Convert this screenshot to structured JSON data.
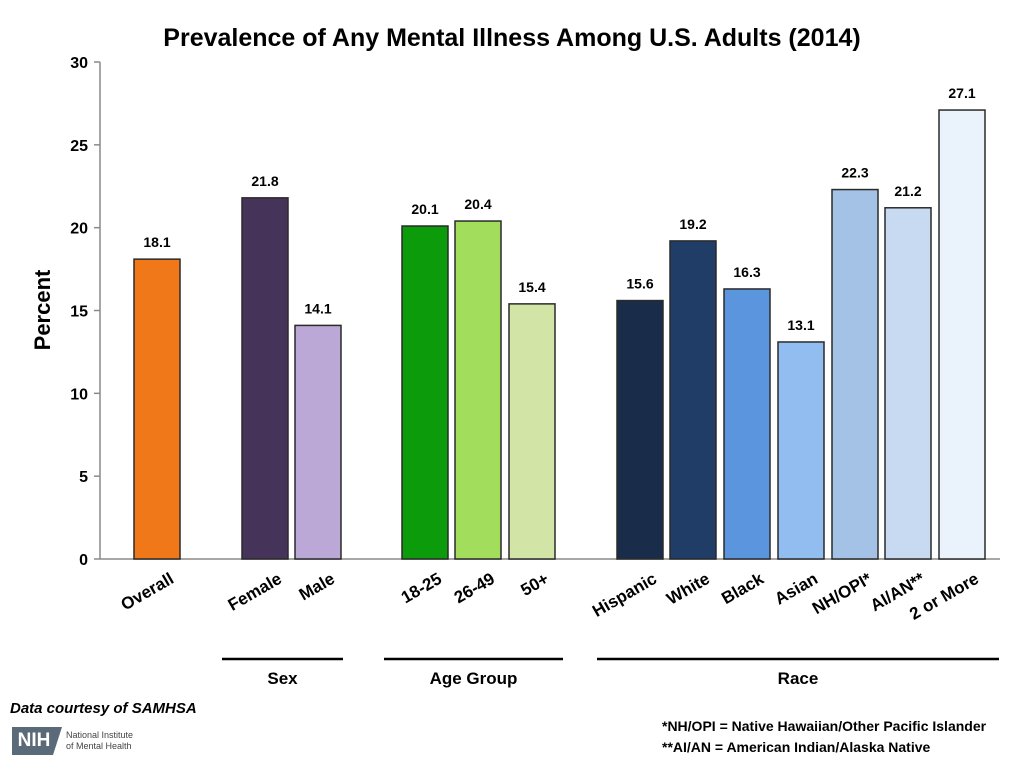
{
  "chart_data": {
    "type": "bar",
    "title": "Prevalence of Any Mental Illness Among U.S. Adults (2014)",
    "ylabel": "Percent",
    "xlabel": "",
    "ylim": [
      0,
      30
    ],
    "yticks": [
      0,
      5,
      10,
      15,
      20,
      25,
      30
    ],
    "grid": false,
    "legend": "none",
    "categories": [
      "Overall",
      "Female",
      "Male",
      "18-25",
      "26-49",
      "50+",
      "Hispanic",
      "White",
      "Black",
      "Asian",
      "NH/OPI*",
      "AI/AN**",
      "2 or More"
    ],
    "values": [
      18.1,
      21.8,
      14.1,
      20.1,
      20.4,
      15.4,
      15.6,
      19.2,
      16.3,
      13.1,
      22.3,
      21.2,
      27.1
    ],
    "value_labels": [
      "18.1",
      "21.8",
      "14.1",
      "20.1",
      "20.4",
      "15.4",
      "15.6",
      "19.2",
      "16.3",
      "13.1",
      "22.3",
      "21.2",
      "27.1"
    ],
    "colors": [
      "#f07818",
      "#46335a",
      "#bca8d6",
      "#0b9b0b",
      "#a2de5c",
      "#d3e5a6",
      "#192d4b",
      "#1f3d66",
      "#5b95de",
      "#92bdf0",
      "#a4c1e6",
      "#c7daf1",
      "#eaf2fc"
    ],
    "groups": [
      {
        "label": "Sex",
        "categories": [
          "Female",
          "Male"
        ]
      },
      {
        "label": "Age Group",
        "categories": [
          "18-25",
          "26-49",
          "50+"
        ]
      },
      {
        "label": "Race",
        "categories": [
          "Hispanic",
          "White",
          "Black",
          "Asian",
          "NH/OPI*",
          "AI/AN**",
          "2 or More"
        ]
      }
    ]
  },
  "credit": "Data courtesy of SAMHSA",
  "logo": {
    "mark": "NIH",
    "line1": "National Institute",
    "line2": "of Mental Health"
  },
  "notes": [
    "*NH/OPI = Native Hawaiian/Other Pacific Islander",
    "**AI/AN = American Indian/Alaska Native"
  ]
}
